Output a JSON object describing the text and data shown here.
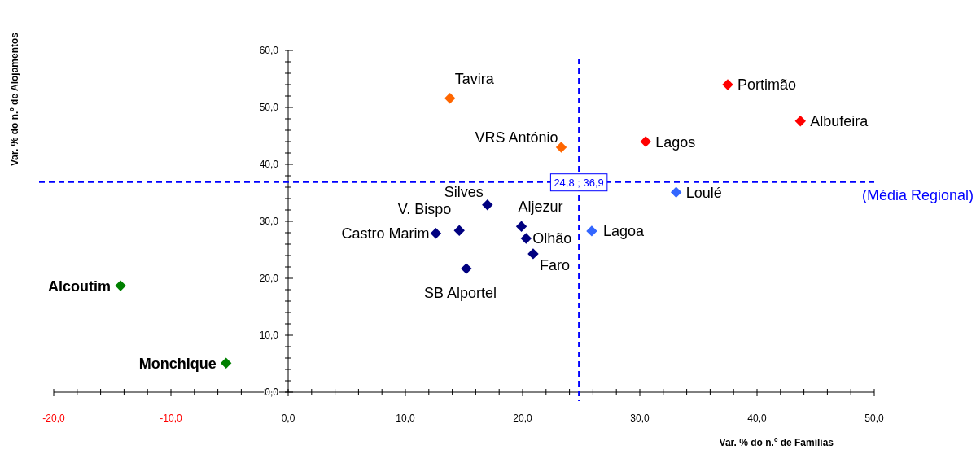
{
  "chart_data": {
    "type": "scatter",
    "xlabel": "Var. % do n.º de Famílias",
    "ylabel": "Var. % do n.º de Alojamentos",
    "marker": "diamond",
    "grid": false,
    "xlim": [
      -20,
      50
    ],
    "ylim": [
      0,
      60
    ],
    "xticks": [
      {
        "value": -20,
        "label": "-20,0"
      },
      {
        "value": -18,
        "label": null
      },
      {
        "value": -16,
        "label": null
      },
      {
        "value": -14,
        "label": null
      },
      {
        "value": -12,
        "label": null
      },
      {
        "value": -10,
        "label": "-10,0"
      },
      {
        "value": -8,
        "label": null
      },
      {
        "value": -6,
        "label": null
      },
      {
        "value": -4,
        "label": null
      },
      {
        "value": -2,
        "label": null
      },
      {
        "value": 0,
        "label": "0,0"
      },
      {
        "value": 2,
        "label": null
      },
      {
        "value": 4,
        "label": null
      },
      {
        "value": 6,
        "label": null
      },
      {
        "value": 8,
        "label": null
      },
      {
        "value": 10,
        "label": "10,0"
      },
      {
        "value": 12,
        "label": null
      },
      {
        "value": 14,
        "label": null
      },
      {
        "value": 16,
        "label": null
      },
      {
        "value": 18,
        "label": null
      },
      {
        "value": 20,
        "label": "20,0"
      },
      {
        "value": 22,
        "label": null
      },
      {
        "value": 24,
        "label": null
      },
      {
        "value": 26,
        "label": null
      },
      {
        "value": 28,
        "label": null
      },
      {
        "value": 30,
        "label": "30,0"
      },
      {
        "value": 32,
        "label": null
      },
      {
        "value": 34,
        "label": null
      },
      {
        "value": 36,
        "label": null
      },
      {
        "value": 38,
        "label": null
      },
      {
        "value": 40,
        "label": "40,0"
      },
      {
        "value": 42,
        "label": null
      },
      {
        "value": 44,
        "label": null
      },
      {
        "value": 46,
        "label": null
      },
      {
        "value": 48,
        "label": null
      },
      {
        "value": 50,
        "label": "50,0"
      }
    ],
    "yticks": [
      {
        "value": 0,
        "label": "0,0"
      },
      {
        "value": 2,
        "label": null
      },
      {
        "value": 4,
        "label": null
      },
      {
        "value": 6,
        "label": null
      },
      {
        "value": 8,
        "label": null
      },
      {
        "value": 10,
        "label": "10,0"
      },
      {
        "value": 12,
        "label": null
      },
      {
        "value": 14,
        "label": null
      },
      {
        "value": 16,
        "label": null
      },
      {
        "value": 18,
        "label": null
      },
      {
        "value": 20,
        "label": "20,0"
      },
      {
        "value": 22,
        "label": null
      },
      {
        "value": 24,
        "label": null
      },
      {
        "value": 26,
        "label": null
      },
      {
        "value": 28,
        "label": null
      },
      {
        "value": 30,
        "label": "30,0"
      },
      {
        "value": 32,
        "label": null
      },
      {
        "value": 34,
        "label": null
      },
      {
        "value": 36,
        "label": null
      },
      {
        "value": 38,
        "label": null
      },
      {
        "value": 40,
        "label": "40,0"
      },
      {
        "value": 42,
        "label": null
      },
      {
        "value": 44,
        "label": null
      },
      {
        "value": 46,
        "label": null
      },
      {
        "value": 48,
        "label": null
      },
      {
        "value": 50,
        "label": "50,0"
      },
      {
        "value": 52,
        "label": null
      },
      {
        "value": 54,
        "label": null
      },
      {
        "value": 56,
        "label": null
      },
      {
        "value": 58,
        "label": null
      },
      {
        "value": 60,
        "label": "60,0"
      }
    ],
    "series": [
      {
        "color": "#ff0000",
        "x": [
          37.5,
          43.7,
          30.5
        ],
        "values": [
          54.0,
          47.6,
          44.0
        ]
      },
      {
        "color": "#ff6600",
        "x": [
          13.8,
          23.3
        ],
        "values": [
          51.6,
          43.0
        ]
      },
      {
        "color": "#3366ff",
        "x": [
          33.1,
          25.9
        ],
        "values": [
          35.1,
          28.3
        ]
      },
      {
        "color": "#000080",
        "x": [
          17.0,
          14.6,
          12.6,
          19.9,
          20.3,
          20.9,
          15.2
        ],
        "values": [
          32.9,
          28.4,
          27.9,
          29.1,
          27.0,
          24.3,
          21.7
        ]
      },
      {
        "color": "#008000",
        "x": [
          -14.3,
          -5.3
        ],
        "values": [
          18.7,
          5.1
        ]
      }
    ],
    "ref_lines": [
      {
        "axis": "x",
        "value": 24.8,
        "color": "#0000ff",
        "line_style": "dashed"
      },
      {
        "axis": "y",
        "value": 36.9,
        "label": "(Média Regional)",
        "color": "#0000ff",
        "line_style": "dashed"
      }
    ],
    "annotations": [
      {
        "text": "Portimão",
        "x": 37.5,
        "y": 54.0
      },
      {
        "text": "Albufeira",
        "x": 43.7,
        "y": 47.6
      },
      {
        "text": "Lagos",
        "x": 30.5,
        "y": 44.0
      },
      {
        "text": "Tavira",
        "x": 13.8,
        "y": 51.6
      },
      {
        "text": "VRS António",
        "x": 23.3,
        "y": 43.0
      },
      {
        "text": "Loulé",
        "x": 33.1,
        "y": 35.1
      },
      {
        "text": "Lagoa",
        "x": 25.9,
        "y": 28.3
      },
      {
        "text": "Silves",
        "x": 17.0,
        "y": 32.9
      },
      {
        "text": "V. Bispo",
        "x": 14.6,
        "y": 28.4
      },
      {
        "text": "Castro Marim",
        "x": 12.6,
        "y": 27.9
      },
      {
        "text": "Aljezur",
        "x": 19.9,
        "y": 29.1
      },
      {
        "text": "Olhão",
        "x": 20.3,
        "y": 27.0
      },
      {
        "text": "Faro",
        "x": 20.9,
        "y": 24.3
      },
      {
        "text": "SB Alportel",
        "x": 15.2,
        "y": 21.7
      },
      {
        "text": "Alcoutim",
        "x": -14.3,
        "y": 18.7
      },
      {
        "text": "Monchique",
        "x": -5.3,
        "y": 5.1
      },
      {
        "text": "24,8 ; 36,9",
        "x": 24.8,
        "y": 36.9
      }
    ]
  }
}
